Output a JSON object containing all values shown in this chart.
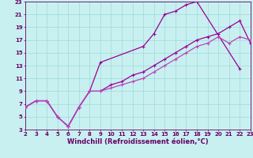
{
  "xlabel": "Windchill (Refroidissement éolien,°C)",
  "xlim": [
    2,
    23
  ],
  "ylim": [
    3,
    23
  ],
  "xticks": [
    2,
    3,
    4,
    5,
    6,
    7,
    8,
    9,
    10,
    11,
    12,
    13,
    14,
    15,
    16,
    17,
    18,
    19,
    20,
    21,
    22,
    23
  ],
  "yticks": [
    3,
    5,
    7,
    9,
    11,
    13,
    15,
    17,
    19,
    21,
    23
  ],
  "bg_color": "#c8f0f0",
  "grid_color": "#a0d8d8",
  "line_color1": "#990099",
  "line_color2": "#bb44bb",
  "series": [
    {
      "x": [
        2,
        3,
        4,
        5,
        6,
        7,
        8,
        9,
        13,
        14,
        15,
        16,
        17,
        18,
        22
      ],
      "y": [
        6.5,
        7.5,
        7.5,
        5,
        3.5,
        6.5,
        9,
        13.5,
        16,
        18,
        21,
        21.5,
        22.5,
        23,
        12.5
      ],
      "color": "#990099"
    },
    {
      "x": [
        2,
        3,
        4,
        5,
        6,
        7,
        8,
        9,
        10,
        11,
        12,
        13,
        14,
        15,
        16,
        17,
        18,
        19,
        20,
        21,
        22,
        23
      ],
      "y": [
        6.5,
        7.5,
        7.5,
        5,
        3.5,
        6.5,
        9,
        9,
        10,
        10.5,
        11.5,
        12,
        13,
        14,
        15,
        16,
        17,
        17.5,
        18,
        19,
        20,
        16.5
      ],
      "color": "#990099"
    },
    {
      "x": [
        2,
        3,
        4,
        5,
        6,
        7,
        8,
        9,
        10,
        11,
        12,
        13,
        14,
        15,
        16,
        17,
        18,
        19,
        20,
        21,
        22,
        23
      ],
      "y": [
        6.5,
        7.5,
        7.5,
        5,
        3.5,
        6.5,
        9,
        9,
        9.5,
        10,
        10.5,
        11,
        12,
        13,
        14,
        15,
        16,
        16.5,
        17.5,
        16.5,
        17.5,
        17
      ],
      "color": "#bb44bb"
    }
  ],
  "font_color": "#660066",
  "tick_fontsize": 5,
  "xlabel_fontsize": 6,
  "figwidth": 3.2,
  "figheight": 2.0,
  "dpi": 100
}
